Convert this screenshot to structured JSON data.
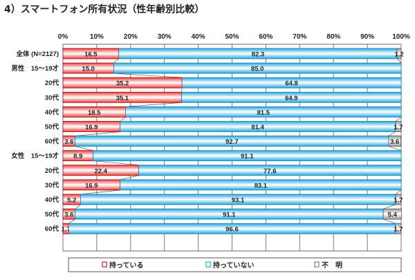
{
  "chart_data": {
    "type": "bar",
    "orientation": "horizontal",
    "stacked": true,
    "title": "4）スマートフォン所有状況（性年齢別比較）",
    "xlim": [
      0,
      100
    ],
    "xticks": [
      "0%",
      "10%",
      "20%",
      "30%",
      "40%",
      "50%",
      "60%",
      "70%",
      "80%",
      "90%",
      "100%"
    ],
    "grid": true,
    "legend_position": "bottom",
    "categories": [
      "全体 (N=2127)",
      "男性　15～19才",
      "20代",
      "30代",
      "40代",
      "50代",
      "60代",
      "女性　15～19才",
      "20代",
      "30代",
      "40代",
      "50代",
      "60代"
    ],
    "series": [
      {
        "name": "持っている",
        "color": "#e03030",
        "values": [
          16.5,
          15.0,
          35.2,
          35.1,
          18.5,
          16.9,
          3.6,
          8.9,
          22.4,
          16.9,
          5.2,
          3.6,
          1.7
        ]
      },
      {
        "name": "持っていない",
        "color": "#33b5e5",
        "values": [
          82.3,
          85.0,
          64.8,
          64.9,
          81.5,
          81.4,
          92.7,
          91.1,
          77.6,
          83.1,
          93.1,
          91.1,
          96.6
        ]
      },
      {
        "name": "不　明",
        "color": "#9a9a9a",
        "values": [
          1.2,
          null,
          null,
          null,
          null,
          1.7,
          3.6,
          null,
          null,
          null,
          1.7,
          5.4,
          1.7
        ]
      }
    ]
  }
}
